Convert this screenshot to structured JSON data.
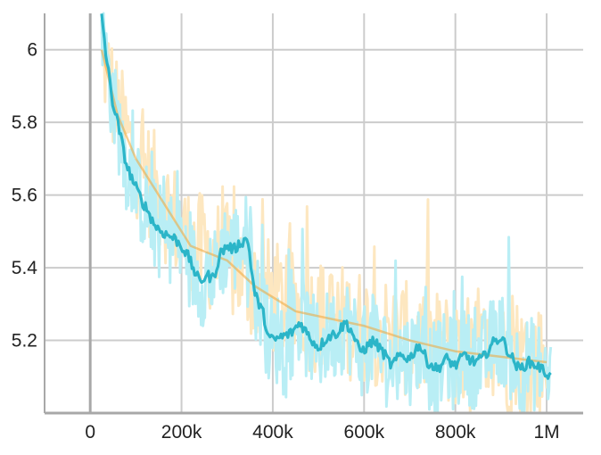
{
  "chart_data": {
    "type": "line",
    "title": "",
    "xlabel": "",
    "ylabel": "",
    "xlim": [
      -100000,
      1080000
    ],
    "ylim": [
      5.0,
      6.1
    ],
    "grid": true,
    "x_ticks": [
      {
        "value": 0,
        "label": "0"
      },
      {
        "value": 200000,
        "label": "200k"
      },
      {
        "value": 400000,
        "label": "400k"
      },
      {
        "value": 600000,
        "label": "600k"
      },
      {
        "value": 800000,
        "label": "800k"
      },
      {
        "value": 1000000,
        "label": "1M"
      }
    ],
    "y_ticks": [
      {
        "value": 5.2,
        "label": "5.2"
      },
      {
        "value": 5.4,
        "label": "5.4"
      },
      {
        "value": 5.6,
        "label": "5.6"
      },
      {
        "value": 5.8,
        "label": "5.8"
      },
      {
        "value": 6.0,
        "label": "6"
      }
    ],
    "colors": {
      "series_main": "#2bb5c8",
      "series_main_raw": "#b9eef5",
      "series_orange": "#f0a637",
      "series_orange_raw": "#fde7c0",
      "grid": "#cccccc",
      "axis": "#a8a8a8"
    },
    "series": [
      {
        "color": "#2bb5c8",
        "smoothed_x": [
          25000,
          35000,
          50000,
          60000,
          70000,
          80000,
          100000,
          115000,
          125000,
          140000,
          155000,
          170000,
          185000,
          200000,
          215000,
          225000,
          240000,
          255000,
          270000,
          285000,
          300000,
          315000,
          330000,
          345000,
          360000,
          370000,
          380000,
          390000,
          400000,
          420000,
          440000,
          460000,
          480000,
          500000,
          520000,
          540000,
          560000,
          575000,
          590000,
          605000,
          620000,
          640000,
          660000,
          680000,
          700000,
          720000,
          740000,
          760000,
          780000,
          800000,
          820000,
          840000,
          860000,
          880000,
          900000,
          920000,
          940000,
          960000,
          980000,
          1000000,
          1010000
        ],
        "smoothed_y": [
          6.1,
          5.98,
          5.85,
          5.8,
          5.74,
          5.68,
          5.62,
          5.58,
          5.56,
          5.52,
          5.5,
          5.49,
          5.48,
          5.46,
          5.43,
          5.4,
          5.36,
          5.38,
          5.37,
          5.44,
          5.46,
          5.45,
          5.47,
          5.48,
          5.33,
          5.3,
          5.27,
          5.21,
          5.2,
          5.21,
          5.22,
          5.25,
          5.21,
          5.18,
          5.21,
          5.22,
          5.25,
          5.22,
          5.17,
          5.18,
          5.2,
          5.17,
          5.13,
          5.16,
          5.15,
          5.19,
          5.14,
          5.12,
          5.15,
          5.13,
          5.16,
          5.14,
          5.15,
          5.19,
          5.21,
          5.16,
          5.12,
          5.14,
          5.13,
          5.11,
          5.1
        ]
      },
      {
        "color": "#f0a637",
        "smoothed_x": [
          25000,
          60000,
          100000,
          160000,
          220000,
          300000,
          360000,
          450000,
          600000,
          700000,
          800000,
          1000000
        ],
        "smoothed_y": [
          6.0,
          5.82,
          5.7,
          5.58,
          5.46,
          5.42,
          5.35,
          5.28,
          5.24,
          5.2,
          5.17,
          5.14
        ]
      }
    ]
  }
}
